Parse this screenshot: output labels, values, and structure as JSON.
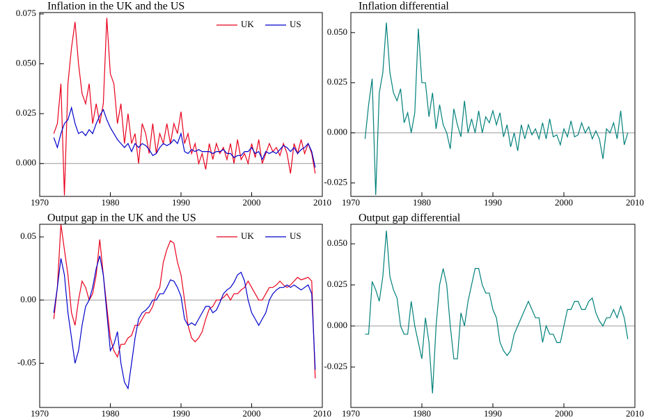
{
  "chart_data": [
    {
      "type": "line",
      "title": "Inflation in the UK and the US",
      "legend": "upper right",
      "zero_line": true,
      "x": [
        1972,
        1972.5,
        1973,
        1973.5,
        1974,
        1974.5,
        1975,
        1975.5,
        1976,
        1976.5,
        1977,
        1977.5,
        1978,
        1978.5,
        1979,
        1979.5,
        1980,
        1980.5,
        1981,
        1981.5,
        1982,
        1982.5,
        1983,
        1983.5,
        1984,
        1984.5,
        1985,
        1985.5,
        1986,
        1986.5,
        1987,
        1987.5,
        1988,
        1988.5,
        1989,
        1989.5,
        1990,
        1990.5,
        1991,
        1991.5,
        1992,
        1992.5,
        1993,
        1993.5,
        1994,
        1994.5,
        1995,
        1995.5,
        1996,
        1996.5,
        1997,
        1997.5,
        1998,
        1998.5,
        1999,
        1999.5,
        2000,
        2000.5,
        2001,
        2001.5,
        2002,
        2002.5,
        2003,
        2003.5,
        2004,
        2004.5,
        2005,
        2005.5,
        2006,
        2006.5,
        2007,
        2007.5,
        2008,
        2008.5,
        2009
      ],
      "series": [
        {
          "name": "UK",
          "color": "#e8001c",
          "values": [
            0.015,
            0.02,
            0.04,
            -0.016,
            0.04,
            0.058,
            0.071,
            0.05,
            0.035,
            0.03,
            0.04,
            0.02,
            0.03,
            0.02,
            0.03,
            0.073,
            0.045,
            0.04,
            0.02,
            0.03,
            0.01,
            0.025,
            0.01,
            0.015,
            0.0,
            0.02,
            0.015,
            0.005,
            0.02,
            0.005,
            0.015,
            0.01,
            0.02,
            0.01,
            0.02,
            0.015,
            0.026,
            0.01,
            0.015,
            0.005,
            0.01,
            0.0,
            0.005,
            -0.003,
            0.01,
            0.002,
            0.01,
            0.005,
            0.008,
            0.002,
            0.01,
            0.0,
            0.012,
            0.002,
            0.005,
            0.0,
            0.01,
            0.003,
            0.012,
            0.0,
            0.005,
            0.01,
            0.006,
            0.008,
            0.004,
            0.01,
            0.005,
            -0.005,
            0.01,
            0.005,
            0.012,
            0.005,
            0.01,
            0.005,
            -0.005
          ]
        },
        {
          "name": "US",
          "color": "#0000cc",
          "values": [
            0.013,
            0.008,
            0.015,
            0.02,
            0.022,
            0.028,
            0.02,
            0.015,
            0.016,
            0.014,
            0.017,
            0.015,
            0.02,
            0.024,
            0.027,
            0.022,
            0.018,
            0.015,
            0.012,
            0.01,
            0.008,
            0.01,
            0.006,
            0.01,
            0.008,
            0.01,
            0.009,
            0.007,
            0.004,
            0.005,
            0.008,
            0.01,
            0.009,
            0.01,
            0.012,
            0.01,
            0.015,
            0.006,
            0.005,
            0.007,
            0.006,
            0.007,
            0.006,
            0.006,
            0.006,
            0.005,
            0.006,
            0.006,
            0.007,
            0.005,
            0.005,
            0.003,
            0.004,
            0.004,
            0.006,
            0.006,
            0.008,
            0.005,
            0.006,
            0.002,
            0.006,
            0.005,
            0.006,
            0.005,
            0.007,
            0.009,
            0.008,
            0.006,
            0.008,
            0.005,
            0.007,
            0.008,
            0.01,
            0.006,
            -0.002
          ]
        }
      ],
      "xlim": [
        1970,
        2010
      ],
      "xticks": [
        1970,
        1980,
        1990,
        2000,
        2010
      ],
      "ylim": [
        -0.0165,
        0.0757
      ],
      "yticks": [
        {
          "value": 0,
          "label": "0.000"
        },
        {
          "value": 0.025,
          "label": "0.025"
        },
        {
          "value": 0.05,
          "label": "0.050"
        },
        {
          "value": 0.075,
          "label": "0.075"
        }
      ]
    },
    {
      "type": "line",
      "title": "Inflation differential",
      "zero_line": true,
      "x": [
        1972,
        1972.5,
        1973,
        1973.5,
        1974,
        1974.5,
        1975,
        1975.5,
        1976,
        1976.5,
        1977,
        1977.5,
        1978,
        1978.5,
        1979,
        1979.5,
        1980,
        1980.5,
        1981,
        1981.5,
        1982,
        1982.5,
        1983,
        1983.5,
        1984,
        1984.5,
        1985,
        1985.5,
        1986,
        1986.5,
        1987,
        1987.5,
        1988,
        1988.5,
        1989,
        1989.5,
        1990,
        1990.5,
        1991,
        1991.5,
        1992,
        1992.5,
        1993,
        1993.5,
        1994,
        1994.5,
        1995,
        1995.5,
        1996,
        1996.5,
        1997,
        1997.5,
        1998,
        1998.5,
        1999,
        1999.5,
        2000,
        2000.5,
        2001,
        2001.5,
        2002,
        2002.5,
        2003,
        2003.5,
        2004,
        2004.5,
        2005,
        2005.5,
        2006,
        2006.5,
        2007,
        2007.5,
        2008,
        2008.5,
        2009
      ],
      "series": [
        {
          "color": "#00807a",
          "values": [
            -0.003,
            0.014,
            0.027,
            -0.031,
            0.02,
            0.03,
            0.055,
            0.03,
            0.02,
            0.016,
            0.022,
            0.005,
            0.01,
            0.0,
            0.01,
            0.052,
            0.025,
            0.025,
            0.008,
            0.02,
            0.002,
            0.014,
            0.004,
            0.0,
            -0.008,
            0.012,
            0.004,
            -0.002,
            0.016,
            0.0,
            0.007,
            0.0,
            0.011,
            0.0,
            0.008,
            0.005,
            0.011,
            0.004,
            0.01,
            -0.002,
            0.004,
            -0.007,
            0.0,
            -0.009,
            0.004,
            -0.003,
            0.004,
            -0.001,
            0.002,
            -0.003,
            0.005,
            -0.003,
            0.007,
            -0.002,
            -0.001,
            -0.006,
            0.002,
            -0.002,
            0.006,
            -0.002,
            -0.001,
            0.005,
            0.0,
            0.003,
            -0.003,
            0.001,
            -0.003,
            -0.013,
            0.002,
            0.0,
            0.005,
            -0.003,
            0.011,
            -0.006,
            0.0
          ]
        }
      ],
      "xlim": [
        1970,
        2010
      ],
      "xticks": [
        1970,
        1980,
        1990,
        2000,
        2010
      ],
      "ylim": [
        -0.0317,
        0.06
      ],
      "yticks": [
        {
          "value": -0.025,
          "label": "-0.025"
        },
        {
          "value": 0,
          "label": "0.000"
        },
        {
          "value": 0.025,
          "label": "0.025"
        },
        {
          "value": 0.05,
          "label": "0.050"
        }
      ]
    },
    {
      "type": "line",
      "title": "Output gap in the UK and the US",
      "legend": "upper right",
      "zero_line": true,
      "x": [
        1972,
        1972.5,
        1973,
        1973.5,
        1974,
        1974.5,
        1975,
        1975.5,
        1976,
        1976.5,
        1977,
        1977.5,
        1978,
        1978.5,
        1979,
        1979.5,
        1980,
        1980.5,
        1981,
        1981.5,
        1982,
        1982.5,
        1983,
        1983.5,
        1984,
        1984.5,
        1985,
        1985.5,
        1986,
        1986.5,
        1987,
        1987.5,
        1988,
        1988.5,
        1989,
        1989.5,
        1990,
        1990.5,
        1991,
        1991.5,
        1992,
        1992.5,
        1993,
        1993.5,
        1994,
        1994.5,
        1995,
        1995.5,
        1996,
        1996.5,
        1997,
        1997.5,
        1998,
        1998.5,
        1999,
        1999.5,
        2000,
        2000.5,
        2001,
        2001.5,
        2002,
        2002.5,
        2003,
        2003.5,
        2004,
        2004.5,
        2005,
        2005.5,
        2006,
        2006.5,
        2007,
        2007.5,
        2008,
        2008.5,
        2009
      ],
      "series": [
        {
          "name": "UK",
          "color": "#e8001c",
          "values": [
            -0.015,
            0.01,
            0.06,
            0.04,
            0.02,
            -0.01,
            -0.02,
            0.0,
            0.015,
            0.01,
            0.0,
            0.005,
            0.02,
            0.048,
            0.02,
            -0.005,
            -0.03,
            -0.04,
            -0.045,
            -0.035,
            -0.035,
            -0.03,
            -0.028,
            -0.02,
            -0.02,
            -0.015,
            -0.01,
            -0.01,
            -0.005,
            0.005,
            0.01,
            0.03,
            0.04,
            0.047,
            0.045,
            0.03,
            0.02,
            0.0,
            -0.02,
            -0.03,
            -0.033,
            -0.03,
            -0.025,
            -0.015,
            -0.007,
            -0.005,
            0.0,
            0.0,
            0.002,
            0.005,
            0.0,
            0.005,
            0.005,
            0.008,
            0.01,
            0.015,
            0.01,
            0.005,
            0.0,
            0.0,
            0.005,
            0.01,
            0.01,
            0.012,
            0.015,
            0.012,
            0.01,
            0.012,
            0.015,
            0.018,
            0.016,
            0.017,
            0.018,
            0.015,
            -0.062
          ]
        },
        {
          "name": "US",
          "color": "#0000cc",
          "values": [
            -0.01,
            0.01,
            0.033,
            0.02,
            -0.01,
            -0.03,
            -0.05,
            -0.04,
            -0.02,
            -0.005,
            0.0,
            0.01,
            0.025,
            0.035,
            0.02,
            -0.01,
            -0.04,
            -0.035,
            -0.025,
            -0.05,
            -0.065,
            -0.07,
            -0.05,
            -0.03,
            -0.015,
            -0.01,
            -0.008,
            -0.005,
            0.0,
            0.0,
            0.005,
            0.005,
            0.01,
            0.016,
            0.015,
            0.01,
            0.003,
            -0.015,
            -0.02,
            -0.018,
            -0.02,
            -0.015,
            -0.01,
            -0.005,
            -0.005,
            -0.01,
            -0.008,
            -0.002,
            0.005,
            0.008,
            0.01,
            0.014,
            0.02,
            0.022,
            0.015,
            0.0,
            -0.01,
            -0.015,
            -0.02,
            -0.015,
            -0.01,
            0.0,
            0.005,
            0.008,
            0.01,
            0.01,
            0.012,
            0.01,
            0.012,
            0.01,
            0.008,
            0.01,
            0.012,
            0.005,
            -0.055
          ]
        }
      ],
      "xlim": [
        1970,
        2010
      ],
      "xticks": [
        1970,
        1980,
        1990,
        2000,
        2010
      ],
      "ylim": [
        -0.085,
        0.06
      ],
      "yticks": [
        {
          "value": -0.05,
          "label": "-0.05"
        },
        {
          "value": 0,
          "label": "0.00"
        },
        {
          "value": 0.05,
          "label": "0.05"
        }
      ]
    },
    {
      "type": "line",
      "title": "Output gap differential",
      "zero_line": true,
      "x": [
        1972,
        1972.5,
        1973,
        1973.5,
        1974,
        1974.5,
        1975,
        1975.5,
        1976,
        1976.5,
        1977,
        1977.5,
        1978,
        1978.5,
        1979,
        1979.5,
        1980,
        1980.5,
        1981,
        1981.5,
        1982,
        1982.5,
        1983,
        1983.5,
        1984,
        1984.5,
        1985,
        1985.5,
        1986,
        1986.5,
        1987,
        1987.5,
        1988,
        1988.5,
        1989,
        1989.5,
        1990,
        1990.5,
        1991,
        1991.5,
        1992,
        1992.5,
        1993,
        1993.5,
        1994,
        1994.5,
        1995,
        1995.5,
        1996,
        1996.5,
        1997,
        1997.5,
        1998,
        1998.5,
        1999,
        1999.5,
        2000,
        2000.5,
        2001,
        2001.5,
        2002,
        2002.5,
        2003,
        2003.5,
        2004,
        2004.5,
        2005,
        2005.5,
        2006,
        2006.5,
        2007,
        2007.5,
        2008,
        2008.5,
        2009
      ],
      "series": [
        {
          "color": "#00807a",
          "values": [
            -0.005,
            -0.005,
            0.027,
            0.022,
            0.015,
            0.03,
            0.058,
            0.03,
            0.022,
            0.017,
            0.0,
            -0.005,
            -0.005,
            0.015,
            0.0,
            -0.01,
            -0.02,
            0.005,
            -0.01,
            -0.041,
            0.0,
            0.025,
            0.035,
            0.025,
            0.0,
            -0.02,
            -0.02,
            0.008,
            0.0,
            0.015,
            0.025,
            0.035,
            0.035,
            0.025,
            0.02,
            0.02,
            0.01,
            0.005,
            -0.01,
            -0.015,
            -0.018,
            -0.015,
            -0.005,
            0.0,
            0.005,
            0.01,
            0.015,
            0.01,
            0.005,
            0.005,
            -0.01,
            0.0,
            -0.005,
            -0.005,
            -0.01,
            -0.01,
            0.0,
            0.01,
            0.01,
            0.015,
            0.015,
            0.01,
            0.01,
            0.015,
            0.017,
            0.008,
            0.003,
            0.0,
            0.005,
            0.005,
            0.01,
            0.005,
            0.012,
            0.005,
            -0.008
          ]
        }
      ],
      "xlim": [
        1970,
        2010
      ],
      "xticks": [
        1970,
        1980,
        1990,
        2000,
        2010
      ],
      "ylim": [
        -0.0496,
        0.0619
      ],
      "yticks": [
        {
          "value": -0.025,
          "label": "-0.025"
        },
        {
          "value": 0,
          "label": "0.000"
        },
        {
          "value": 0.025,
          "label": "0.025"
        },
        {
          "value": 0.05,
          "label": "0.050"
        }
      ]
    }
  ]
}
